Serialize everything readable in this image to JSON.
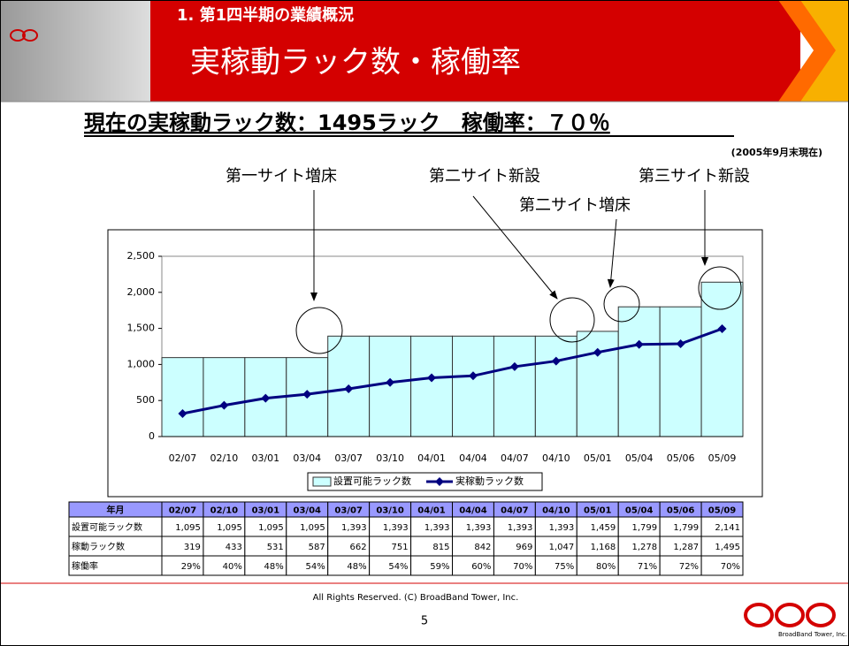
{
  "header": {
    "section": "1. 第1四半期の業績概況",
    "title": "実稼動ラック数・稼働率"
  },
  "subtitle": "現在の実稼動ラック数：1495ラック　稼働率：７０％",
  "as_of": "(2005年9月末現在)",
  "chart_data": {
    "type": "bar_line",
    "annotations": [
      "第一サイト増床",
      "第二サイト新設",
      "第二サイト増床",
      "第三サイト新設"
    ],
    "categories": [
      "02/07",
      "02/10",
      "03/01",
      "03/04",
      "03/07",
      "03/10",
      "04/01",
      "04/04",
      "04/07",
      "04/10",
      "05/01",
      "05/04",
      "05/06",
      "05/09"
    ],
    "series": [
      {
        "name": "設置可能ラック数",
        "type": "bar",
        "color": "#ccffff",
        "values": [
          1095,
          1095,
          1095,
          1095,
          1393,
          1393,
          1393,
          1393,
          1393,
          1393,
          1459,
          1799,
          1799,
          2141
        ]
      },
      {
        "name": "実稼動ラック数",
        "type": "line",
        "color": "#000080",
        "values": [
          319,
          433,
          531,
          587,
          662,
          751,
          815,
          842,
          969,
          1047,
          1168,
          1278,
          1287,
          1495
        ]
      }
    ],
    "ylim": [
      0,
      2500
    ],
    "yticks": [
      0,
      500,
      {
        "value": 1000,
        "label": "1,000"
      },
      {
        "value": 1500,
        "label": "1,500"
      },
      {
        "value": 2000,
        "label": "2,000"
      },
      {
        "value": 2500,
        "label": "2,500"
      }
    ],
    "grid": false,
    "legend": "bottom"
  },
  "table": {
    "header": [
      "年月",
      "02/07",
      "02/10",
      "03/01",
      "03/04",
      "03/07",
      "03/10",
      "04/01",
      "04/04",
      "04/07",
      "04/10",
      "05/01",
      "05/04",
      "05/06",
      "05/09"
    ],
    "rows": [
      [
        "設置可能ラック数",
        "1,095",
        "1,095",
        "1,095",
        "1,095",
        "1,393",
        "1,393",
        "1,393",
        "1,393",
        "1,393",
        "1,393",
        "1,459",
        "1,799",
        "1,799",
        "2,141"
      ],
      [
        "稼動ラック数",
        "319",
        "433",
        "531",
        "587",
        "662",
        "751",
        "815",
        "842",
        "969",
        "1,047",
        "1,168",
        "1,278",
        "1,287",
        "1,495"
      ],
      [
        "稼働率",
        "29%",
        "40%",
        "48%",
        "54%",
        "48%",
        "54%",
        "59%",
        "60%",
        "70%",
        "75%",
        "80%",
        "71%",
        "72%",
        "70%"
      ]
    ]
  },
  "footer": {
    "copyright": "All Rights Reserved. (C) BroadBand Tower, Inc.",
    "page": "5",
    "logo_text": "BroadBand Tower, Inc."
  }
}
